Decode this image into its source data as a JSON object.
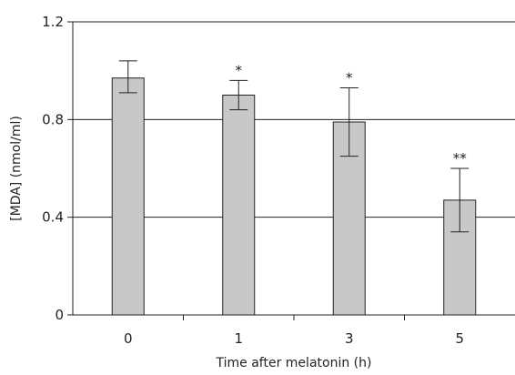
{
  "chart_data": {
    "type": "bar",
    "title": "",
    "xlabel": "Time after melatonin (h)",
    "ylabel": "[MDA] (nmol/ml)",
    "categories": [
      "0",
      "1",
      "3",
      "5"
    ],
    "values": [
      0.97,
      0.9,
      0.79,
      0.47
    ],
    "error_plus": [
      0.07,
      0.06,
      0.14,
      0.13
    ],
    "error_minus": [
      0.06,
      0.06,
      0.14,
      0.13
    ],
    "annotations": [
      "",
      "*",
      "*",
      "**"
    ],
    "ylim": [
      0,
      1.2
    ],
    "yticks": [
      {
        "value": 0,
        "label": "0"
      },
      {
        "value": 0.4,
        "label": "0.4"
      },
      {
        "value": 0.8,
        "label": "0.8"
      },
      {
        "value": 1.2,
        "label": "1.2"
      }
    ],
    "grid": true,
    "colors": {
      "bar_fill": "#c8c8c8",
      "bar_stroke": "#222222",
      "axis": "#222222",
      "grid": "#222222"
    }
  }
}
